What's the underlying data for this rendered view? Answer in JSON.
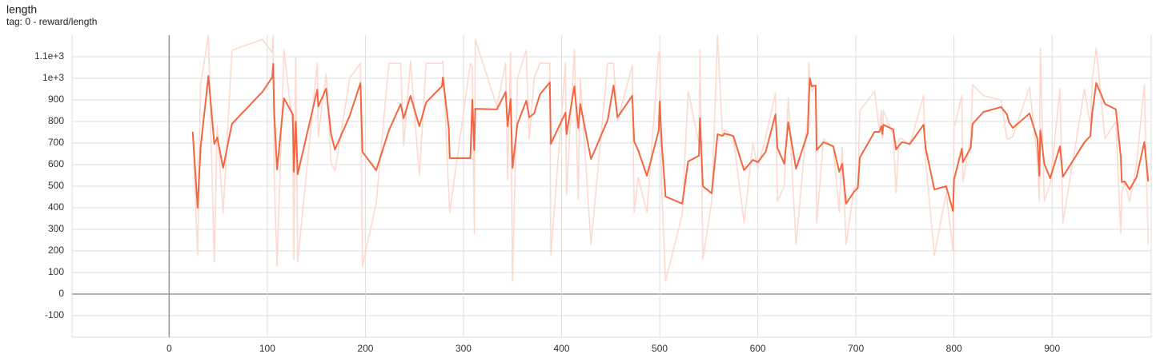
{
  "chart_data": {
    "type": "line",
    "title": "length",
    "subtitle": "tag: 0 - reward/length",
    "x": [
      24,
      29,
      32,
      40,
      46,
      49,
      55,
      64,
      95,
      105,
      106,
      107,
      110,
      117,
      126,
      127,
      129,
      131,
      151,
      152,
      160,
      165,
      169,
      184,
      195,
      197,
      211,
      224,
      236,
      239,
      246,
      255,
      262,
      278,
      279,
      285,
      286,
      307,
      309,
      311,
      312,
      334,
      343,
      345,
      348,
      350,
      355,
      364,
      367,
      372,
      378,
      388,
      389,
      404,
      405,
      413,
      417,
      419,
      430,
      447,
      453,
      457,
      472,
      474,
      478,
      487,
      499,
      500,
      502,
      506,
      523,
      529,
      540,
      541,
      544,
      553,
      559,
      564,
      566,
      575,
      586,
      595,
      600,
      608,
      618,
      620,
      627,
      631,
      639,
      651,
      652,
      653,
      655,
      659,
      660,
      667,
      677,
      683,
      686,
      690,
      698,
      702,
      704,
      719,
      724,
      726,
      727,
      728,
      738,
      741,
      744,
      747,
      755,
      769,
      771,
      780,
      792,
      799,
      800,
      808,
      809,
      817,
      819,
      830,
      848,
      854,
      856,
      860,
      877,
      885,
      887,
      888,
      892,
      898,
      908,
      911,
      933,
      939,
      941,
      945,
      954,
      965,
      970,
      971,
      974,
      979,
      986,
      994,
      998
    ],
    "series": [
      {
        "color": "#fdd9cf",
        "values": [
          752,
          180,
          970,
          1200,
          150,
          780,
          375,
          1130,
          1180,
          1120,
          1200,
          560,
          130,
          1130,
          780,
          160,
          1100,
          150,
          1070,
          730,
          1020,
          610,
          570,
          1000,
          1070,
          130,
          420,
          1070,
          1070,
          690,
          1080,
          550,
          1070,
          1070,
          1080,
          470,
          380,
          1070,
          1050,
          280,
          1180,
          870,
          1070,
          530,
          1120,
          60,
          1000,
          1130,
          720,
          1000,
          1070,
          1070,
          180,
          1070,
          460,
          1130,
          440,
          1000,
          230,
          1070,
          1070,
          800,
          1060,
          380,
          540,
          380,
          1120,
          1120,
          500,
          60,
          370,
          940,
          700,
          1130,
          160,
          430,
          1200,
          730,
          760,
          730,
          330,
          700,
          580,
          730,
          930,
          430,
          500,
          910,
          230,
          840,
          1070,
          1000,
          940,
          970,
          330,
          720,
          680,
          380,
          680,
          230,
          490,
          500,
          850,
          940,
          750,
          850,
          720,
          850,
          740,
          470,
          720,
          720,
          690,
          920,
          620,
          180,
          470,
          200,
          770,
          920,
          520,
          720,
          970,
          920,
          900,
          720,
          720,
          730,
          960,
          620,
          430,
          1140,
          430,
          510,
          950,
          330,
          950,
          780,
          1000,
          1140,
          720,
          800,
          280,
          470,
          520,
          430,
          600,
          970,
          230
        ]
      },
      {
        "color": "#f4663f",
        "values": [
          752,
          400,
          678,
          1011,
          696,
          726,
          585,
          789,
          937,
          1004,
          1067,
          844,
          578,
          907,
          833,
          567,
          800,
          556,
          948,
          870,
          952,
          741,
          670,
          826,
          978,
          659,
          574,
          759,
          881,
          815,
          919,
          778,
          889,
          963,
          1004,
          770,
          630,
          630,
          900,
          667,
          859,
          856,
          937,
          778,
          904,
          585,
          789,
          896,
          819,
          837,
          926,
          981,
          696,
          841,
          741,
          963,
          770,
          881,
          626,
          807,
          967,
          819,
          919,
          707,
          667,
          548,
          759,
          893,
          704,
          452,
          419,
          615,
          641,
          815,
          500,
          467,
          741,
          733,
          744,
          733,
          574,
          622,
          611,
          659,
          833,
          678,
          604,
          796,
          581,
          748,
          893,
          1000,
          963,
          967,
          667,
          704,
          685,
          567,
          604,
          419,
          474,
          493,
          633,
          752,
          752,
          778,
          741,
          785,
          763,
          670,
          689,
          704,
          696,
          785,
          678,
          485,
          500,
          385,
          530,
          674,
          611,
          678,
          789,
          844,
          867,
          833,
          796,
          770,
          837,
          719,
          548,
          759,
          604,
          537,
          685,
          544,
          704,
          733,
          844,
          978,
          881,
          856,
          637,
          519,
          522,
          485,
          541,
          704,
          522
        ]
      }
    ],
    "xlim": [
      -99,
      1001
    ],
    "xticks": [
      0,
      100,
      200,
      300,
      400,
      500,
      600,
      700,
      800,
      900
    ],
    "ylim": [
      -200,
      1200
    ],
    "yticks": [
      -100,
      0,
      100,
      200,
      300,
      400,
      500,
      600,
      700,
      800,
      900,
      {
        "value": 1000,
        "label": "1e+3"
      },
      {
        "value": 1100,
        "label": "1.1e+3"
      }
    ],
    "grid": true
  }
}
